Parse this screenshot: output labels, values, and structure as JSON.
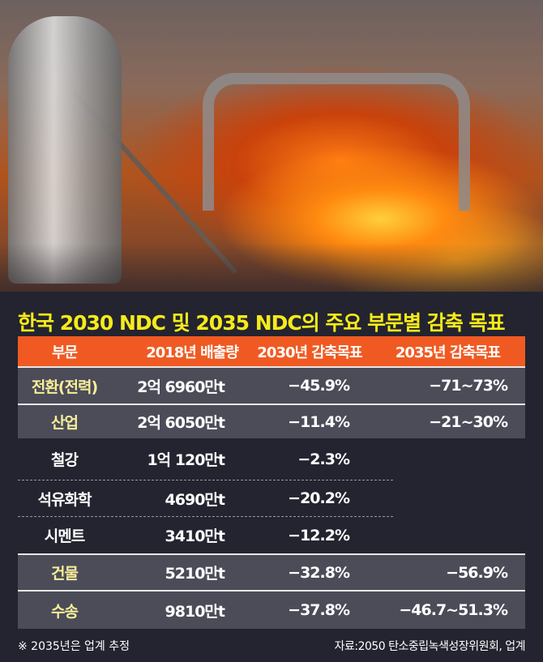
{
  "title": "한국 2030 NDC 및 2035 NDC의 주요 부문별 감축 목표",
  "chart_data": {
    "type": "table",
    "title": "한국 2030 NDC 및 2035 NDC의 주요 부문별 감축 목표",
    "columns": [
      "부문",
      "2018년 배출량",
      "2030년 감축목표",
      "2035년 감축목표"
    ],
    "rows": [
      [
        "전환(전력)",
        "2억 6960만t",
        "−45.9%",
        "−71~73%"
      ],
      [
        "산업",
        "2억 6050만t",
        "−11.4%",
        "−21~30%"
      ],
      [
        "철강",
        "1억 120만t",
        "−2.3%",
        ""
      ],
      [
        "석유화학",
        "4690만t",
        "−20.2%",
        ""
      ],
      [
        "시멘트",
        "3410만t",
        "−12.2%",
        ""
      ],
      [
        "건물",
        "5210만t",
        "−32.8%",
        "−56.9%"
      ],
      [
        "수송",
        "9810만t",
        "−37.8%",
        "−46.7~51.3%"
      ]
    ]
  },
  "note": "※ 2035년은 업계 추정",
  "source": "자료:2050 탄소중립녹색성장위원회, 업계",
  "colors": {
    "title": "#f7ea1a",
    "header": "#f05a22",
    "highlight_row": "#4b4c58",
    "background": "#23242f"
  }
}
